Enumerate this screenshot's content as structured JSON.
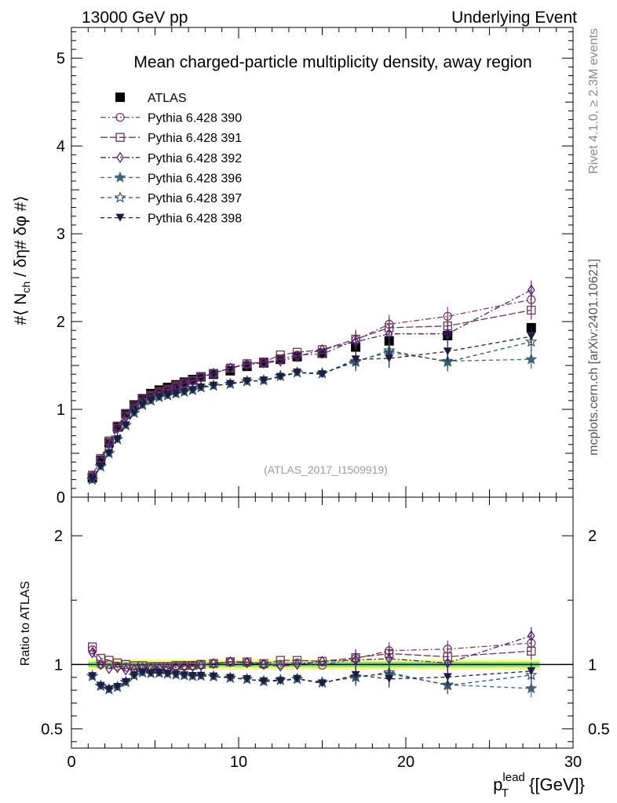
{
  "header": {
    "left": "13000 GeV pp",
    "right": "Underlying Event"
  },
  "side_labels": {
    "rivet": "Rivet 4.1.0, ≥ 2.3M events",
    "source": "mcplots.cern.ch [arXiv:2401.10621]"
  },
  "chart_data": [
    {
      "panel": "main",
      "type": "scatter",
      "title": "Mean charged-particle multiplicity density, away region",
      "analysis_tag": "(ATLAS_2017_I1509919)",
      "ylabel": "#⟨ N_ch / δη# δφ #⟩",
      "ylabel_parts": {
        "before": "#⟨ N",
        "sub": "ch",
        "after": " / δη# δφ #⟩"
      },
      "xlim": [
        0,
        30
      ],
      "ylim": [
        0,
        5.35
      ],
      "y_ticks": [
        "0",
        "1",
        "2",
        "3",
        "4",
        "5"
      ],
      "x": [
        1.25,
        1.75,
        2.25,
        2.75,
        3.25,
        3.75,
        4.25,
        4.75,
        5.25,
        5.75,
        6.25,
        6.75,
        7.25,
        7.75,
        8.5,
        9.5,
        10.5,
        11.5,
        12.5,
        13.5,
        15.0,
        17.0,
        19.0,
        22.5,
        27.5
      ],
      "series": [
        {
          "name": "ATLAS",
          "marker": "square-filled",
          "color": "#000000",
          "dash": "none",
          "values": [
            0.22,
            0.42,
            0.62,
            0.8,
            0.95,
            1.05,
            1.12,
            1.18,
            1.22,
            1.25,
            1.28,
            1.31,
            1.34,
            1.37,
            1.4,
            1.44,
            1.49,
            1.53,
            1.57,
            1.6,
            1.64,
            1.71,
            1.78,
            1.84,
            1.93
          ]
        },
        {
          "name": "Pythia 6.428 390",
          "marker": "circle-open",
          "color": "#7a3b6e",
          "dash": "7,3,2,3",
          "values": [
            0.245,
            0.42,
            0.62,
            0.79,
            0.93,
            1.02,
            1.09,
            1.15,
            1.19,
            1.22,
            1.26,
            1.29,
            1.33,
            1.37,
            1.41,
            1.47,
            1.51,
            1.53,
            1.57,
            1.62,
            1.63,
            1.79,
            1.97,
            2.06,
            2.25
          ]
        },
        {
          "name": "Pythia 6.428 391",
          "marker": "square-open",
          "color": "#6e3458",
          "dash": "9,3",
          "values": [
            0.25,
            0.44,
            0.64,
            0.81,
            0.95,
            1.04,
            1.11,
            1.16,
            1.2,
            1.23,
            1.27,
            1.3,
            1.33,
            1.37,
            1.41,
            1.47,
            1.52,
            1.54,
            1.62,
            1.65,
            1.68,
            1.8,
            1.93,
            1.95,
            2.13
          ]
        },
        {
          "name": "Pythia 6.428 392",
          "marker": "diamond-open",
          "color": "#4b1f78",
          "dash": "7,3,2,3",
          "values": [
            0.24,
            0.42,
            0.6,
            0.78,
            0.91,
            1.01,
            1.09,
            1.14,
            1.18,
            1.21,
            1.25,
            1.29,
            1.32,
            1.36,
            1.41,
            1.47,
            1.51,
            1.53,
            1.55,
            1.6,
            1.68,
            1.77,
            1.86,
            1.86,
            2.36
          ]
        },
        {
          "name": "Pythia 6.428 396",
          "marker": "star-filled",
          "color": "#3e6478",
          "dash": "5,4",
          "values": [
            0.2,
            0.35,
            0.5,
            0.66,
            0.82,
            0.96,
            1.05,
            1.1,
            1.14,
            1.16,
            1.18,
            1.2,
            1.22,
            1.25,
            1.27,
            1.29,
            1.32,
            1.33,
            1.38,
            1.42,
            1.41,
            1.55,
            1.65,
            1.55,
            1.57
          ]
        },
        {
          "name": "Pythia 6.428 397",
          "marker": "star-open",
          "color": "#2e4e6e",
          "dash": "5,4",
          "values": [
            0.2,
            0.35,
            0.5,
            0.66,
            0.82,
            0.96,
            1.05,
            1.1,
            1.14,
            1.16,
            1.18,
            1.2,
            1.22,
            1.25,
            1.27,
            1.29,
            1.32,
            1.33,
            1.38,
            1.42,
            1.41,
            1.54,
            1.67,
            1.54,
            1.77
          ]
        },
        {
          "name": "Pythia 6.428 398",
          "marker": "triangle-down-filled",
          "color": "#1c1e40",
          "dash": "5,4",
          "values": [
            0.2,
            0.35,
            0.5,
            0.66,
            0.82,
            0.96,
            1.05,
            1.1,
            1.14,
            1.16,
            1.18,
            1.2,
            1.22,
            1.25,
            1.27,
            1.29,
            1.32,
            1.33,
            1.37,
            1.42,
            1.4,
            1.57,
            1.58,
            1.66,
            1.83
          ]
        }
      ]
    },
    {
      "panel": "ratio",
      "type": "scatter",
      "ylabel": "Ratio to ATLAS",
      "xlabel": "p_T^lead {[GeV]}",
      "xlabel_parts": {
        "p": "p",
        "sub": "T",
        "sup": "lead",
        "unit": " {[GeV]}"
      },
      "xlim": [
        0,
        30
      ],
      "ylim": [
        0.35,
        2.3
      ],
      "x_ticks": [
        "0",
        "10",
        "20",
        "30"
      ],
      "y_ticks": [
        "0.5",
        "1",
        "2"
      ],
      "reference": 1.0,
      "band": [
        0.96,
        1.04
      ]
    }
  ]
}
